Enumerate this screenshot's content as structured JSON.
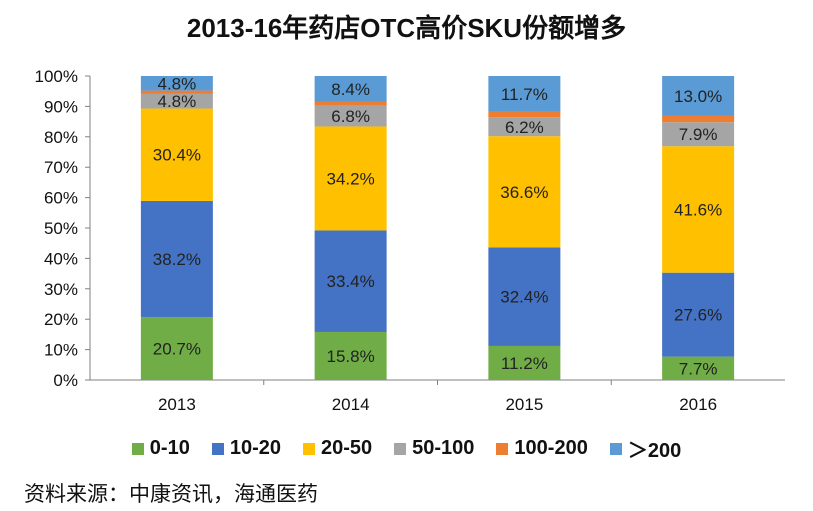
{
  "chart_data": {
    "type": "bar",
    "stacked": true,
    "percent": true,
    "title": "2013-16年药店OTC高价SKU份额增多",
    "categories": [
      "2013",
      "2014",
      "2015",
      "2016"
    ],
    "yticks": [
      "0%",
      "10%",
      "20%",
      "30%",
      "40%",
      "50%",
      "60%",
      "70%",
      "80%",
      "90%",
      "100%"
    ],
    "ylim": [
      0,
      100
    ],
    "legend_position": "bottom",
    "series": [
      {
        "name": "0-10",
        "color": "#70AD47",
        "values": [
          20.7,
          15.8,
          11.2,
          7.7
        ],
        "labels": [
          "20.7%",
          "15.8%",
          "11.2%",
          "7.7%"
        ]
      },
      {
        "name": "10-20",
        "color": "#4472C4",
        "values": [
          38.2,
          33.4,
          32.4,
          27.6
        ],
        "labels": [
          "38.2%",
          "33.4%",
          "32.4%",
          "27.6%"
        ]
      },
      {
        "name": "20-50",
        "color": "#FFC000",
        "values": [
          30.4,
          34.2,
          36.6,
          41.6
        ],
        "labels": [
          "30.4%",
          "34.2%",
          "36.6%",
          "41.6%"
        ]
      },
      {
        "name": "50-100",
        "color": "#A5A5A5",
        "values": [
          4.8,
          6.8,
          6.2,
          7.9
        ],
        "labels": [
          "4.8%",
          "6.8%",
          "6.2%",
          "7.9%"
        ]
      },
      {
        "name": "100-200",
        "color": "#ED7D31",
        "values": [
          1.1,
          1.4,
          1.9,
          2.2
        ],
        "labels": []
      },
      {
        "name": "＞200",
        "color": "#5B9BD5",
        "values": [
          4.8,
          8.4,
          11.7,
          13.0
        ],
        "labels": [
          "4.8%",
          "8.4%",
          "11.7%",
          "13.0%"
        ]
      }
    ]
  },
  "source": "资料来源：中康资讯，海通医药"
}
